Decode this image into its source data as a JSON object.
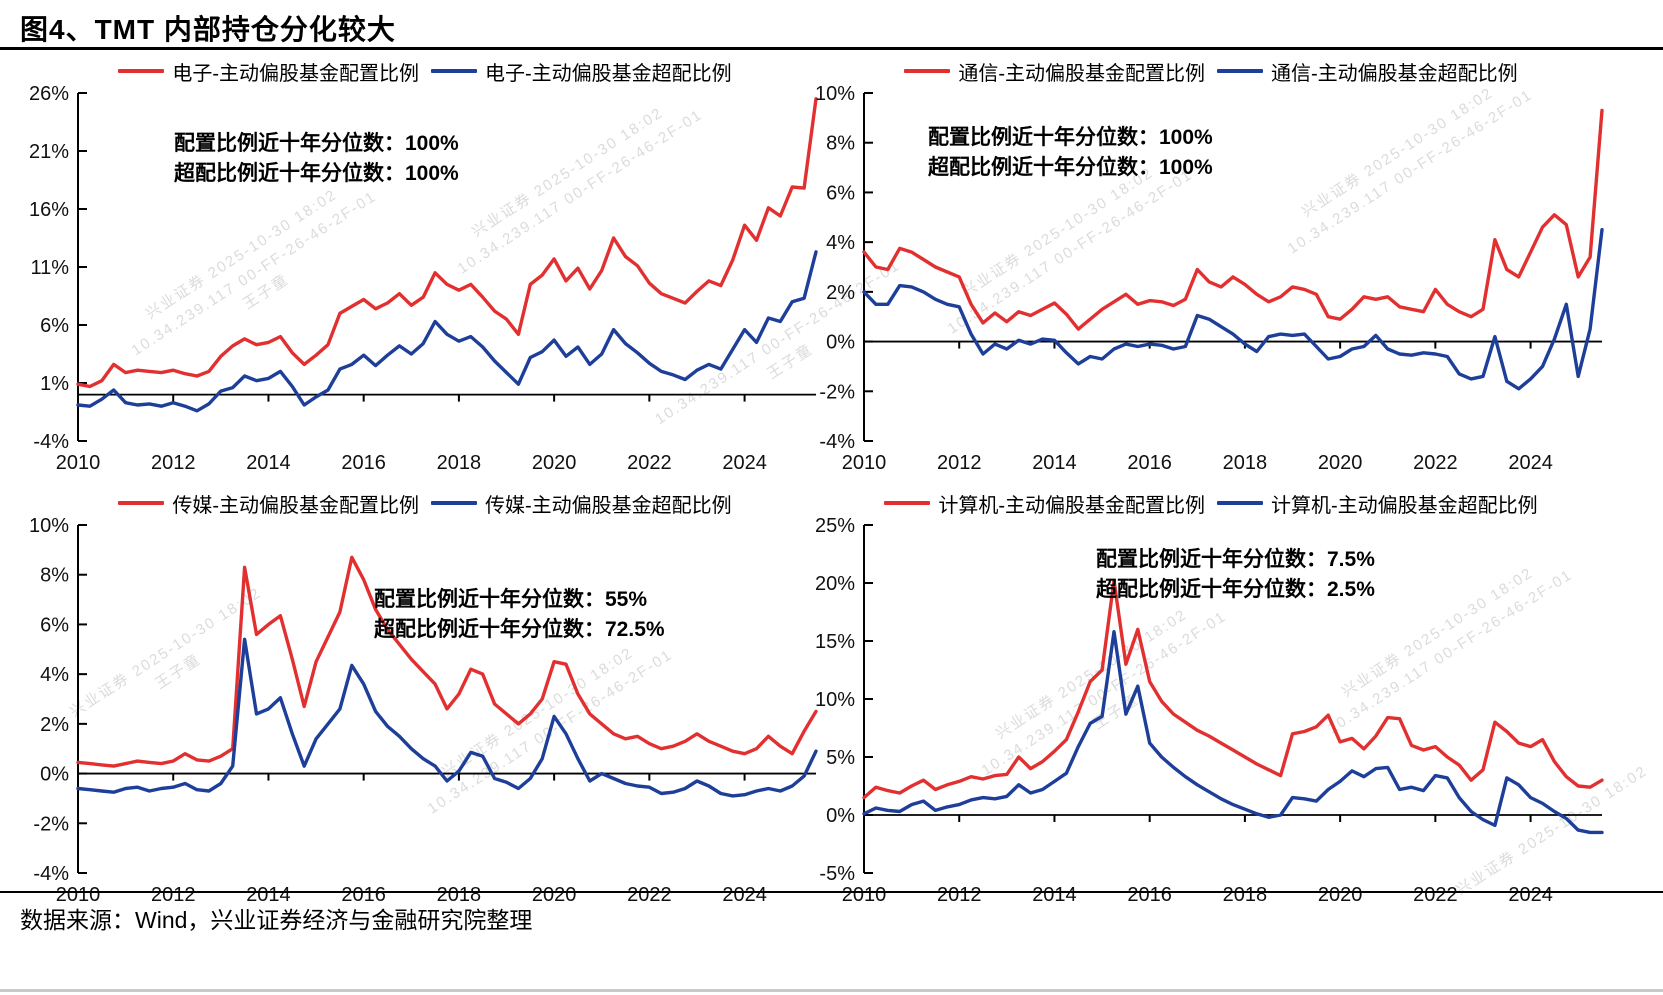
{
  "page": {
    "title": "图4、TMT 内部持仓分化较大",
    "source": "数据来源：Wind，兴业证券经济与金融研究院整理"
  },
  "colors": {
    "allocation_red": "#e23030",
    "overweight_blue": "#1d3e99"
  },
  "watermark": {
    "line1": "兴业证券 2025-10-30 18:02",
    "line2": "10.34.239.117 00-FF-26-46-2F-01",
    "line3": "王子童"
  },
  "chart_data": [
    {
      "type": "line",
      "name": "电子",
      "x_range": [
        2010,
        2025.5
      ],
      "x_step": 0.25,
      "xticks": [
        2010,
        2012,
        2014,
        2016,
        2018,
        2020,
        2022,
        2024
      ],
      "xtick_labels": [
        "2010",
        "2012",
        "2014",
        "2016",
        "2018",
        "2020",
        "2022",
        "2024"
      ],
      "ylim": [
        -4,
        26
      ],
      "yticks": [
        -4,
        1,
        6,
        11,
        16,
        21,
        26
      ],
      "ytick_labels": [
        "-4%",
        "1%",
        "6%",
        "11%",
        "16%",
        "21%",
        "26%"
      ],
      "grid": false,
      "legend_position": "top",
      "annotation": {
        "line1": "配置比例近十年分位数：100%",
        "line2": "超配比例近十年分位数：100%"
      },
      "series": [
        {
          "name": "电子-主动偏股基金配置比例",
          "color": "allocation_red",
          "values": [
            0.9,
            0.7,
            1.2,
            2.6,
            1.9,
            2.1,
            2.0,
            1.9,
            2.1,
            1.8,
            1.6,
            2.0,
            3.3,
            4.2,
            4.8,
            4.3,
            4.5,
            5.0,
            3.6,
            2.6,
            3.4,
            4.3,
            7.0,
            7.6,
            8.2,
            7.4,
            7.9,
            8.7,
            7.7,
            8.4,
            10.5,
            9.5,
            9.0,
            9.5,
            8.4,
            7.2,
            6.5,
            5.2,
            9.5,
            10.3,
            11.7,
            9.8,
            10.9,
            9.1,
            10.7,
            13.5,
            11.9,
            11.1,
            9.6,
            8.7,
            8.3,
            7.9,
            8.9,
            9.8,
            9.4,
            11.6,
            14.6,
            13.3,
            16.1,
            15.4,
            17.9,
            17.8,
            25.5
          ]
        },
        {
          "name": "电子-主动偏股基金超配比例",
          "color": "overweight_blue",
          "values": [
            -0.9,
            -1.0,
            -0.4,
            0.4,
            -0.7,
            -0.9,
            -0.8,
            -1.0,
            -0.7,
            -1.0,
            -1.4,
            -0.8,
            0.3,
            0.6,
            1.6,
            1.2,
            1.4,
            2.0,
            0.7,
            -0.9,
            -0.2,
            0.4,
            2.2,
            2.6,
            3.4,
            2.5,
            3.4,
            4.2,
            3.5,
            4.4,
            6.3,
            5.2,
            4.6,
            5.0,
            4.1,
            2.9,
            1.9,
            0.9,
            3.2,
            3.7,
            4.7,
            3.3,
            4.1,
            2.6,
            3.5,
            5.6,
            4.4,
            3.6,
            2.7,
            2.0,
            1.7,
            1.3,
            2.1,
            2.6,
            2.2,
            3.9,
            5.6,
            4.5,
            6.6,
            6.3,
            8.0,
            8.3,
            12.3
          ]
        }
      ]
    },
    {
      "type": "line",
      "name": "通信",
      "x_range": [
        2010,
        2025.5
      ],
      "x_step": 0.25,
      "xticks": [
        2010,
        2012,
        2014,
        2016,
        2018,
        2020,
        2022,
        2024
      ],
      "xtick_labels": [
        "2010",
        "2012",
        "2014",
        "2016",
        "2018",
        "2020",
        "2022",
        "2024"
      ],
      "ylim": [
        -4,
        10
      ],
      "yticks": [
        -4,
        -2,
        0,
        2,
        4,
        6,
        8,
        10
      ],
      "ytick_labels": [
        "-4%",
        "-2%",
        "0%",
        "2%",
        "4%",
        "6%",
        "8%",
        "10%"
      ],
      "grid": false,
      "legend_position": "top",
      "annotation": {
        "line1": "配置比例近十年分位数：100%",
        "line2": "超配比例近十年分位数：100%"
      },
      "series": [
        {
          "name": "通信-主动偏股基金配置比例",
          "color": "allocation_red",
          "values": [
            3.6,
            3.0,
            2.9,
            3.75,
            3.6,
            3.3,
            3.0,
            2.8,
            2.6,
            1.5,
            0.75,
            1.15,
            0.8,
            1.2,
            1.05,
            1.3,
            1.55,
            1.1,
            0.5,
            0.9,
            1.3,
            1.6,
            1.9,
            1.5,
            1.65,
            1.6,
            1.45,
            1.7,
            2.9,
            2.4,
            2.2,
            2.6,
            2.3,
            1.9,
            1.6,
            1.8,
            2.2,
            2.1,
            1.9,
            1.0,
            0.9,
            1.3,
            1.8,
            1.7,
            1.8,
            1.4,
            1.3,
            1.2,
            2.1,
            1.5,
            1.2,
            1.0,
            1.3,
            4.1,
            2.9,
            2.6,
            3.6,
            4.6,
            5.1,
            4.7,
            2.6,
            3.4,
            9.3
          ]
        },
        {
          "name": "通信-主动偏股基金超配比例",
          "color": "overweight_blue",
          "values": [
            2.0,
            1.5,
            1.5,
            2.25,
            2.2,
            2.0,
            1.7,
            1.5,
            1.4,
            0.3,
            -0.5,
            -0.1,
            -0.3,
            0.05,
            -0.1,
            0.1,
            0.05,
            -0.45,
            -0.9,
            -0.6,
            -0.7,
            -0.3,
            -0.1,
            -0.2,
            -0.1,
            -0.15,
            -0.3,
            -0.2,
            1.05,
            0.9,
            0.6,
            0.3,
            -0.1,
            -0.4,
            0.2,
            0.3,
            0.25,
            0.3,
            -0.2,
            -0.7,
            -0.6,
            -0.3,
            -0.2,
            0.25,
            -0.3,
            -0.5,
            -0.55,
            -0.45,
            -0.5,
            -0.6,
            -1.3,
            -1.5,
            -1.4,
            0.2,
            -1.6,
            -1.9,
            -1.5,
            -1.0,
            0.1,
            1.5,
            -1.4,
            0.5,
            4.5
          ]
        }
      ]
    },
    {
      "type": "line",
      "name": "传媒",
      "x_range": [
        2010,
        2025.5
      ],
      "x_step": 0.25,
      "xticks": [
        2010,
        2012,
        2014,
        2016,
        2018,
        2020,
        2022,
        2024
      ],
      "xtick_labels": [
        "2010",
        "2012",
        "2014",
        "2016",
        "2018",
        "2020",
        "2022",
        "2024"
      ],
      "ylim": [
        -4,
        10
      ],
      "yticks": [
        -4,
        -2,
        0,
        2,
        4,
        6,
        8,
        10
      ],
      "ytick_labels": [
        "-4%",
        "-2%",
        "0%",
        "2%",
        "4%",
        "6%",
        "8%",
        "10%"
      ],
      "grid": false,
      "legend_position": "top",
      "annotation": {
        "line1": "配置比例近十年分位数：55%",
        "line2": "超配比例近十年分位数：72.5%"
      },
      "series": [
        {
          "name": "传媒-主动偏股基金配置比例",
          "color": "allocation_red",
          "values": [
            0.45,
            0.4,
            0.35,
            0.3,
            0.4,
            0.5,
            0.45,
            0.4,
            0.5,
            0.8,
            0.55,
            0.5,
            0.7,
            1.0,
            8.3,
            5.6,
            6.0,
            6.35,
            4.6,
            2.7,
            4.5,
            5.5,
            6.5,
            8.7,
            7.8,
            6.6,
            5.8,
            5.2,
            4.6,
            4.1,
            3.6,
            2.6,
            3.2,
            4.2,
            4.0,
            2.8,
            2.4,
            2.0,
            2.4,
            3.0,
            4.5,
            4.4,
            3.2,
            2.4,
            2.0,
            1.6,
            1.4,
            1.5,
            1.2,
            1.0,
            1.1,
            1.3,
            1.6,
            1.3,
            1.1,
            0.9,
            0.8,
            1.0,
            1.5,
            1.1,
            0.8,
            1.7,
            2.5
          ]
        },
        {
          "name": "传媒-主动偏股基金超配比例",
          "color": "overweight_blue",
          "values": [
            -0.6,
            -0.65,
            -0.7,
            -0.75,
            -0.6,
            -0.55,
            -0.7,
            -0.6,
            -0.55,
            -0.4,
            -0.65,
            -0.7,
            -0.4,
            0.3,
            5.4,
            2.4,
            2.6,
            3.05,
            1.6,
            0.3,
            1.4,
            2.0,
            2.6,
            4.35,
            3.6,
            2.5,
            1.9,
            1.5,
            1.0,
            0.6,
            0.3,
            -0.3,
            0.1,
            0.85,
            0.7,
            -0.2,
            -0.35,
            -0.6,
            -0.2,
            0.6,
            2.3,
            1.6,
            0.6,
            -0.3,
            0.0,
            -0.2,
            -0.4,
            -0.5,
            -0.55,
            -0.8,
            -0.75,
            -0.6,
            -0.3,
            -0.5,
            -0.8,
            -0.9,
            -0.85,
            -0.7,
            -0.6,
            -0.7,
            -0.5,
            -0.1,
            0.9
          ]
        }
      ]
    },
    {
      "type": "line",
      "name": "计算机",
      "x_range": [
        2010,
        2025.5
      ],
      "x_step": 0.25,
      "xticks": [
        2010,
        2012,
        2014,
        2016,
        2018,
        2020,
        2022,
        2024
      ],
      "xtick_labels": [
        "2010",
        "2012",
        "2014",
        "2016",
        "2018",
        "2020",
        "2022",
        "2024"
      ],
      "ylim": [
        -5,
        25
      ],
      "yticks": [
        -5,
        0,
        5,
        10,
        15,
        20,
        25
      ],
      "ytick_labels": [
        "-5%",
        "0%",
        "5%",
        "10%",
        "15%",
        "20%",
        "25%"
      ],
      "grid": false,
      "legend_position": "top",
      "annotation": {
        "line1": "配置比例近十年分位数：7.5%",
        "line2": "超配比例近十年分位数：2.5%"
      },
      "series": [
        {
          "name": "计算机-主动偏股基金配置比例",
          "color": "allocation_red",
          "values": [
            1.5,
            2.4,
            2.1,
            1.9,
            2.5,
            3.0,
            2.2,
            2.6,
            2.9,
            3.3,
            3.1,
            3.4,
            3.5,
            5.0,
            4.0,
            4.6,
            5.5,
            6.5,
            8.9,
            11.5,
            12.5,
            20.2,
            13.0,
            16.0,
            11.5,
            9.8,
            8.7,
            8.0,
            7.3,
            6.8,
            6.2,
            5.6,
            5.0,
            4.4,
            3.9,
            3.4,
            7.0,
            7.2,
            7.6,
            8.6,
            6.3,
            6.6,
            5.7,
            6.8,
            8.4,
            8.3,
            6.0,
            5.6,
            5.9,
            5.0,
            4.3,
            3.0,
            3.9,
            8.0,
            7.2,
            6.2,
            5.9,
            6.5,
            4.6,
            3.3,
            2.5,
            2.4,
            3.0
          ]
        },
        {
          "name": "计算机-主动偏股基金超配比例",
          "color": "overweight_blue",
          "values": [
            0.1,
            0.6,
            0.4,
            0.3,
            0.9,
            1.2,
            0.4,
            0.7,
            0.9,
            1.3,
            1.5,
            1.4,
            1.6,
            2.6,
            1.9,
            2.2,
            2.9,
            3.6,
            5.9,
            7.9,
            8.5,
            15.8,
            8.7,
            11.1,
            6.2,
            5.0,
            4.1,
            3.3,
            2.6,
            2.0,
            1.4,
            0.9,
            0.5,
            0.1,
            -0.2,
            0.0,
            1.5,
            1.4,
            1.2,
            2.2,
            2.9,
            3.8,
            3.3,
            4.0,
            4.1,
            2.2,
            2.4,
            2.1,
            3.4,
            3.2,
            1.5,
            0.3,
            -0.4,
            -0.9,
            3.2,
            2.6,
            1.5,
            1.0,
            0.3,
            -0.3,
            -1.3,
            -1.5,
            -1.5
          ]
        }
      ]
    }
  ]
}
